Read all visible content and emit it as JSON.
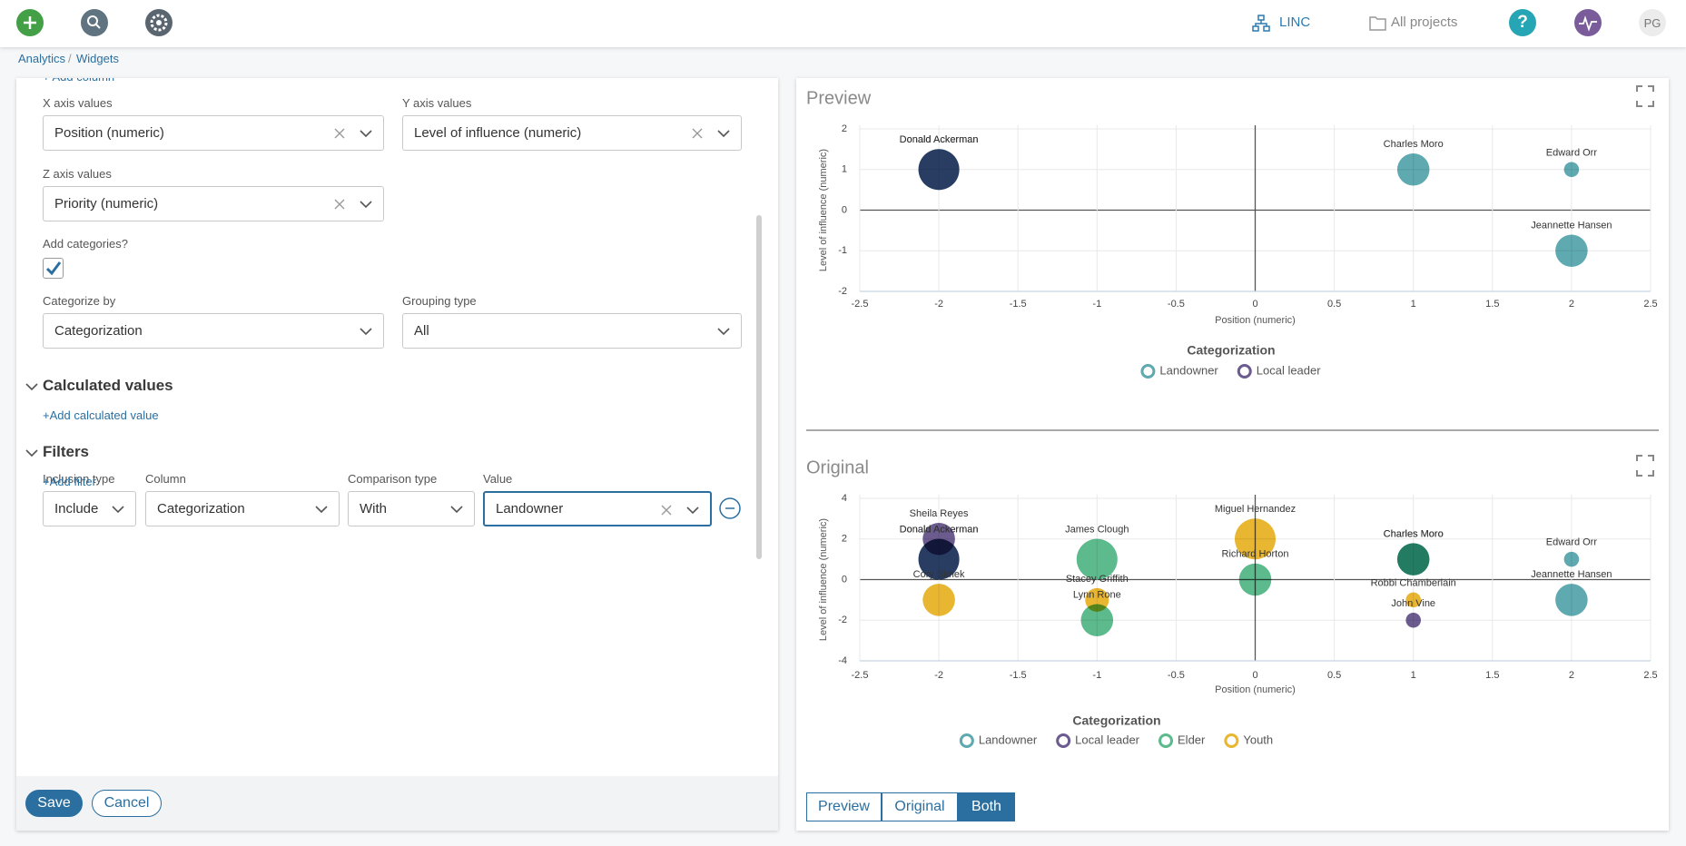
{
  "header": {
    "nav": [
      "LINC",
      "All projects"
    ],
    "help": "?",
    "user": "PG"
  },
  "breadcrumb": {
    "items": [
      "Analytics",
      "Widgets"
    ],
    "separator": "/"
  },
  "form": {
    "add_column": "+ Add column",
    "axes": [
      {
        "label": "X axis values",
        "value": "Position (numeric)",
        "clearable": true
      },
      {
        "label": "Y axis values",
        "value": "Level of influence (numeric)",
        "clearable": true
      },
      {
        "label": "Z axis values",
        "value": "Priority (numeric)",
        "clearable": true
      }
    ],
    "add_categories": {
      "label": "Add categories?",
      "checked": true
    },
    "categorize": [
      {
        "label": "Categorize by",
        "value": "Categorization",
        "clearable": false
      },
      {
        "label": "Grouping type",
        "value": "All",
        "clearable": false
      }
    ],
    "sections": [
      {
        "title": "Calculated values",
        "action": "+Add calculated value"
      },
      {
        "title": "Filters",
        "action": "+Add filter"
      }
    ],
    "filter": [
      {
        "label": "Inclusion type",
        "value": "Include",
        "clearable": false
      },
      {
        "label": "Column",
        "value": "Categorization",
        "clearable": false
      },
      {
        "label": "Comparison type",
        "value": "With",
        "clearable": false
      },
      {
        "label": "Value",
        "value": "Landowner",
        "clearable": true,
        "focused": true
      }
    ],
    "buttons": [
      "Save",
      "Cancel"
    ]
  },
  "view_toggle": {
    "options": [
      "Preview",
      "Original",
      "Both"
    ],
    "active": 2
  },
  "chart_data": [
    {
      "type": "bubble",
      "title": "Preview",
      "x_label": "Position (numeric)",
      "y_label": "Level of influence (numeric)",
      "legend_title": "Categorization",
      "grid": true,
      "xlim": [
        -2.5,
        2.5
      ],
      "xticks": [
        -2.5,
        -2,
        -1.5,
        -1,
        -0.5,
        0,
        0.5,
        1,
        1.5,
        2,
        2.5
      ],
      "ylim": [
        -2,
        2
      ],
      "yticks": [
        -2,
        -1,
        0,
        1,
        2
      ],
      "series": [
        {
          "name": "Landowner",
          "color": "#5fa9b1",
          "x": [
            -2,
            1,
            2,
            2
          ],
          "values": [
            1,
            1,
            1,
            -1
          ],
          "sizes": [
            4,
            3,
            1,
            3
          ],
          "labels": [
            "Donald Ackerman",
            "Charles Moro",
            "Edward Orr",
            "Jeannette Hansen"
          ]
        },
        {
          "name": "Local leader",
          "color": "#6c5b8f",
          "x": [
            -2
          ],
          "values": [
            1
          ],
          "sizes": [
            4
          ],
          "labels": [
            "Donald Ackerman"
          ]
        }
      ]
    },
    {
      "type": "bubble",
      "title": "Original",
      "x_label": "Position (numeric)",
      "y_label": "Level of influence (numeric)",
      "legend_title": "Categorization",
      "grid": true,
      "xlim": [
        -2.5,
        2.5
      ],
      "xticks": [
        -2.5,
        -2,
        -1.5,
        -1,
        -0.5,
        0,
        0.5,
        1,
        1.5,
        2,
        2.5
      ],
      "ylim": [
        -4,
        4
      ],
      "yticks": [
        -4,
        -2,
        0,
        2,
        4
      ],
      "series": [
        {
          "name": "Landowner",
          "color": "#5fa9b1",
          "x": [
            -2,
            1,
            2,
            2
          ],
          "values": [
            1,
            1,
            1,
            -1
          ],
          "sizes": [
            4,
            3,
            1,
            3
          ],
          "labels": [
            "Donald Ackerman",
            "Charles Moro",
            "Edward Orr",
            "Jeannette Hansen"
          ]
        },
        {
          "name": "Local leader",
          "color": "#6c5b8f",
          "x": [
            -2,
            -2,
            1
          ],
          "values": [
            2,
            1,
            -2
          ],
          "sizes": [
            3,
            4,
            1
          ],
          "labels": [
            "Sheila Reyes",
            "Donald Ackerman",
            "John Vine"
          ]
        },
        {
          "name": "Elder",
          "color": "#5cba8c",
          "x": [
            -1,
            -1,
            0,
            1
          ],
          "values": [
            1,
            -2,
            0,
            1
          ],
          "sizes": [
            4,
            3,
            3,
            3
          ],
          "labels": [
            "James Clough",
            "Lynn Rone",
            "Richard Horton",
            "Charles Moro"
          ]
        },
        {
          "name": "Youth",
          "color": "#e9b632",
          "x": [
            0,
            -2,
            -1,
            1
          ],
          "values": [
            2,
            -1,
            -1,
            -1
          ],
          "sizes": [
            4,
            3,
            2,
            1
          ],
          "labels": [
            "Miguel Hernandez",
            "Cory Simek",
            "Stacey Griffith",
            "Robbi Chamberlain"
          ]
        }
      ]
    }
  ]
}
